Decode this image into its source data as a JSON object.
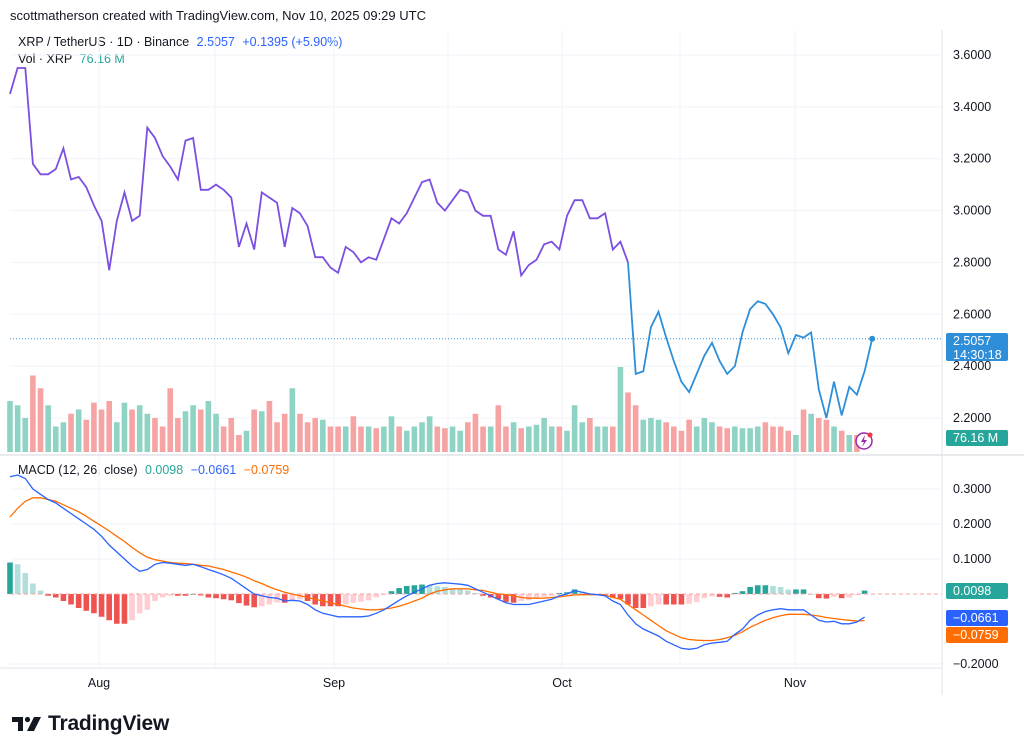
{
  "header": {
    "attribution": "scottmatherson created with TradingView.com, Nov 10, 2025 09:29 UTC"
  },
  "price_legend": {
    "symbol": "XRP / TetherUS · 1D · Binance",
    "last": "2.5057",
    "change": "+0.1395 (+5.90%)"
  },
  "volume_legend": {
    "label": "Vol · XRP",
    "value": "76.16 M"
  },
  "macd_legend": {
    "label": "MACD (12, 26, close)",
    "hist": "0.0098",
    "macd": "−0.0661",
    "signal": "−0.0759"
  },
  "badges": {
    "price": "2.5057",
    "countdown": "14:30:18",
    "volume": "76.16 M",
    "hist": "0.0098",
    "macd": "−0.0661",
    "signal": "−0.0759"
  },
  "logo": {
    "text": "TradingView"
  },
  "colors": {
    "price_line": "#7b4fe0",
    "price_line_recent": "#2e8ed8",
    "vol_up": "#8fd3c4",
    "vol_down": "#f5a3a3",
    "macd_line": "#2962ff",
    "signal_line": "#ff6d00",
    "hist_up_strong": "#26a69a",
    "hist_up_weak": "#b2dfdb",
    "hist_down_strong": "#ef5350",
    "hist_down_weak": "#ffcdd2"
  },
  "chart_data": [
    {
      "type": "line",
      "title": "XRP / TetherUS · 1D · Binance",
      "x_labels": [
        "Aug",
        "Sep",
        "Oct",
        "Nov"
      ],
      "y_ticks": [
        "3.6000",
        "3.4000",
        "3.2000",
        "3.0000",
        "2.8000",
        "2.6000",
        "2.4000",
        "2.2000"
      ],
      "ylim": [
        2.12,
        3.64
      ],
      "series": [
        {
          "values": [
            3.45,
            3.55,
            3.55,
            3.18,
            3.14,
            3.14,
            3.16,
            3.24,
            3.12,
            3.13,
            3.09,
            3.02,
            2.96,
            2.77,
            2.96,
            3.07,
            2.96,
            2.98,
            3.32,
            3.28,
            3.21,
            3.17,
            3.12,
            3.27,
            3.28,
            3.08,
            3.08,
            3.1,
            3.08,
            3.05,
            2.86,
            2.95,
            2.85,
            3.07,
            3.05,
            3.03,
            2.86,
            3.01,
            2.99,
            2.94,
            2.82,
            2.82,
            2.78,
            2.76,
            2.86,
            2.84,
            2.8,
            2.82,
            2.81,
            2.89,
            2.97,
            2.95,
            2.99,
            3.05,
            3.11,
            3.12,
            3.03,
            3.0,
            3.04,
            3.08,
            3.07,
            3.0,
            2.98,
            2.98,
            2.85,
            2.83,
            2.92,
            2.75,
            2.79,
            2.81,
            2.87,
            2.88,
            2.85,
            2.98,
            3.04,
            3.04,
            2.97,
            2.97,
            2.99,
            2.85,
            2.88,
            2.8,
            2.37,
            2.38,
            2.55,
            2.61,
            2.51,
            2.42,
            2.34,
            2.3,
            2.37,
            2.44,
            2.49,
            2.42,
            2.37,
            2.4,
            2.53,
            2.62,
            2.65,
            2.64,
            2.6,
            2.55,
            2.45,
            2.52,
            2.51,
            2.53,
            2.31,
            2.2,
            2.34,
            2.21,
            2.32,
            2.29,
            2.38,
            2.5057
          ]
        }
      ]
    },
    {
      "type": "bar",
      "title": "Vol · XRP",
      "values": [
        60,
        55,
        40,
        90,
        75,
        55,
        30,
        35,
        45,
        50,
        38,
        58,
        50,
        60,
        35,
        58,
        50,
        55,
        45,
        40,
        30,
        75,
        40,
        48,
        55,
        50,
        60,
        45,
        30,
        40,
        20,
        25,
        50,
        48,
        60,
        35,
        45,
        75,
        45,
        35,
        40,
        38,
        30,
        30,
        30,
        42,
        30,
        30,
        28,
        30,
        42,
        30,
        25,
        30,
        35,
        42,
        30,
        28,
        30,
        25,
        35,
        45,
        30,
        30,
        55,
        30,
        35,
        28,
        30,
        32,
        40,
        30,
        30,
        25,
        55,
        35,
        40,
        30,
        30,
        30,
        100,
        70,
        55,
        38,
        40,
        38,
        35,
        30,
        25,
        38,
        30,
        40,
        35,
        30,
        28,
        30,
        28,
        28,
        30,
        35,
        30,
        30,
        25,
        20,
        50,
        45,
        40,
        38,
        30,
        25,
        20,
        20
      ]
    },
    {
      "type": "line",
      "title": "MACD (12, 26, close)",
      "x_labels": [
        "Aug",
        "Sep",
        "Oct",
        "Nov"
      ],
      "y_ticks": [
        "0.3000",
        "0.2000",
        "0.1000",
        "−0.2000"
      ],
      "ylim": [
        -0.2,
        0.35
      ],
      "series": [
        {
          "name": "MACD",
          "values": [
            0.335,
            0.34,
            0.33,
            0.3,
            0.285,
            0.27,
            0.26,
            0.245,
            0.23,
            0.215,
            0.2,
            0.185,
            0.165,
            0.14,
            0.12,
            0.1,
            0.08,
            0.065,
            0.07,
            0.085,
            0.09,
            0.088,
            0.085,
            0.082,
            0.085,
            0.078,
            0.07,
            0.063,
            0.055,
            0.045,
            0.03,
            0.015,
            0.0,
            -0.005,
            -0.01,
            -0.012,
            -0.02,
            -0.018,
            -0.02,
            -0.03,
            -0.045,
            -0.055,
            -0.06,
            -0.065,
            -0.065,
            -0.065,
            -0.065,
            -0.063,
            -0.055,
            -0.045,
            -0.032,
            -0.018,
            -0.005,
            0.005,
            0.015,
            0.025,
            0.03,
            0.032,
            0.03,
            0.028,
            0.025,
            0.015,
            0.005,
            -0.005,
            -0.015,
            -0.025,
            -0.03,
            -0.03,
            -0.03,
            -0.025,
            -0.02,
            -0.015,
            -0.005,
            0.0,
            0.01,
            0.005,
            0.0,
            -0.002,
            -0.005,
            -0.02,
            -0.03,
            -0.06,
            -0.085,
            -0.1,
            -0.11,
            -0.12,
            -0.135,
            -0.145,
            -0.155,
            -0.158,
            -0.155,
            -0.145,
            -0.14,
            -0.138,
            -0.135,
            -0.115,
            -0.1,
            -0.075,
            -0.06,
            -0.05,
            -0.045,
            -0.042,
            -0.045,
            -0.045,
            -0.045,
            -0.06,
            -0.075,
            -0.08,
            -0.078,
            -0.085,
            -0.085,
            -0.08,
            -0.0661
          ]
        },
        {
          "name": "Signal",
          "values": [
            0.22,
            0.245,
            0.265,
            0.275,
            0.275,
            0.27,
            0.265,
            0.255,
            0.245,
            0.235,
            0.222,
            0.208,
            0.194,
            0.18,
            0.165,
            0.15,
            0.133,
            0.118,
            0.105,
            0.098,
            0.094,
            0.09,
            0.088,
            0.087,
            0.085,
            0.082,
            0.08,
            0.075,
            0.07,
            0.063,
            0.056,
            0.048,
            0.038,
            0.03,
            0.02,
            0.012,
            0.005,
            0.0,
            -0.005,
            -0.01,
            -0.015,
            -0.02,
            -0.025,
            -0.03,
            -0.035,
            -0.04,
            -0.043,
            -0.045,
            -0.045,
            -0.043,
            -0.04,
            -0.035,
            -0.028,
            -0.02,
            -0.012,
            0.0,
            0.008,
            0.012,
            0.015,
            0.015,
            0.015,
            0.012,
            0.01,
            0.005,
            0.0,
            -0.002,
            -0.005,
            -0.01,
            -0.012,
            -0.012,
            -0.012,
            -0.01,
            -0.008,
            -0.005,
            -0.003,
            -0.002,
            -0.002,
            -0.002,
            -0.003,
            -0.01,
            -0.015,
            -0.03,
            -0.045,
            -0.06,
            -0.075,
            -0.09,
            -0.105,
            -0.115,
            -0.125,
            -0.13,
            -0.132,
            -0.133,
            -0.133,
            -0.13,
            -0.125,
            -0.118,
            -0.108,
            -0.095,
            -0.085,
            -0.075,
            -0.068,
            -0.062,
            -0.058,
            -0.058,
            -0.058,
            -0.06,
            -0.063,
            -0.067,
            -0.07,
            -0.073,
            -0.075,
            -0.077,
            -0.0759
          ]
        },
        {
          "name": "Histogram",
          "values": [
            0.09,
            0.085,
            0.06,
            0.03,
            0.01,
            -0.005,
            -0.01,
            -0.02,
            -0.03,
            -0.04,
            -0.048,
            -0.055,
            -0.065,
            -0.075,
            -0.085,
            -0.085,
            -0.075,
            -0.055,
            -0.045,
            -0.02,
            -0.01,
            -0.005,
            -0.005,
            -0.005,
            0.0,
            -0.004,
            -0.01,
            -0.012,
            -0.015,
            -0.018,
            -0.026,
            -0.033,
            -0.038,
            -0.035,
            -0.03,
            -0.024,
            -0.025,
            -0.018,
            -0.015,
            -0.02,
            -0.03,
            -0.035,
            -0.035,
            -0.035,
            -0.03,
            -0.025,
            -0.022,
            -0.018,
            -0.01,
            -0.002,
            0.008,
            0.017,
            0.023,
            0.025,
            0.027,
            0.025,
            0.022,
            0.02,
            0.015,
            0.013,
            0.01,
            0.003,
            -0.005,
            -0.01,
            -0.015,
            -0.023,
            -0.025,
            -0.02,
            -0.018,
            -0.013,
            -0.008,
            -0.005,
            0.003,
            0.005,
            0.013,
            0.007,
            0.002,
            0.0,
            -0.002,
            -0.01,
            -0.015,
            -0.03,
            -0.04,
            -0.04,
            -0.035,
            -0.03,
            -0.03,
            -0.03,
            -0.03,
            -0.028,
            -0.023,
            -0.012,
            -0.007,
            -0.008,
            -0.01,
            0.003,
            0.008,
            0.02,
            0.025,
            0.025,
            0.023,
            0.02,
            0.013,
            0.013,
            0.013,
            0.0,
            -0.012,
            -0.013,
            -0.008,
            -0.012,
            -0.01,
            -0.003,
            0.0098
          ]
        }
      ]
    }
  ]
}
